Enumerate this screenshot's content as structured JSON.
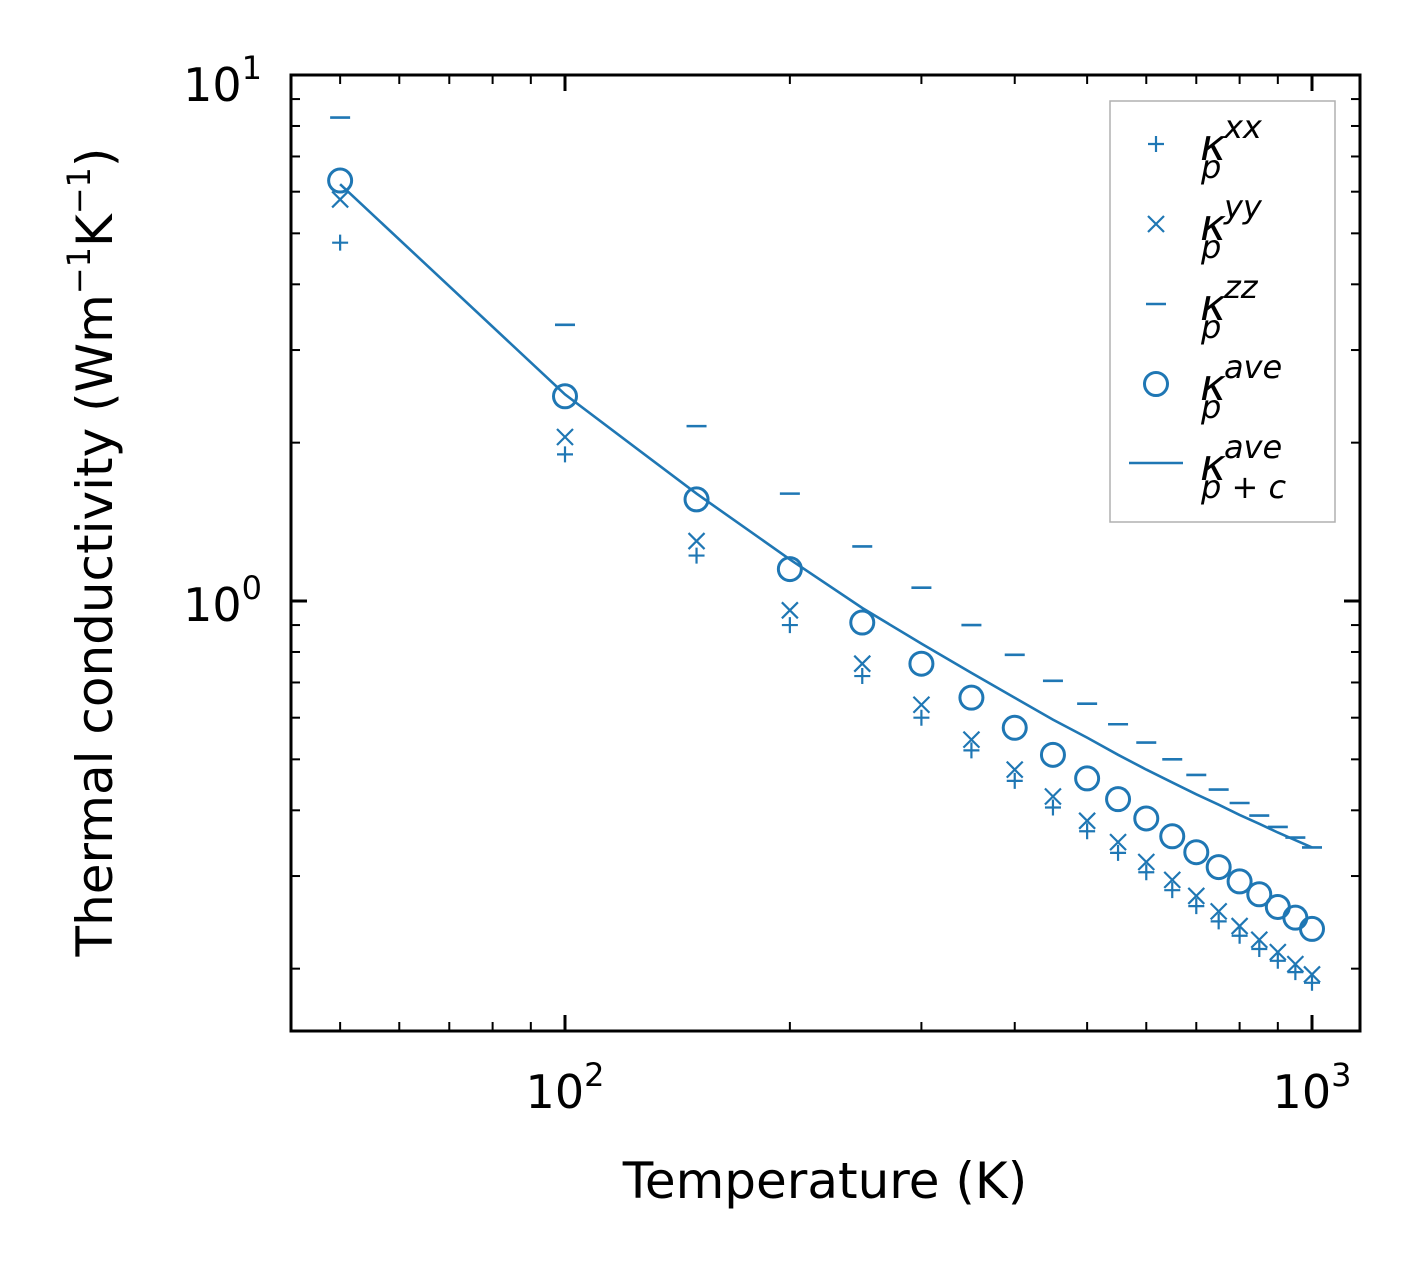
{
  "chart_data": {
    "type": "scatter",
    "xscale": "log",
    "yscale": "log",
    "xlim": [
      45,
      1050
    ],
    "ylim": [
      0.17,
      10
    ],
    "xlabel": "Temperature (K)",
    "ylabel": {
      "prefix": "Thermal conductivity (Wm",
      "exp1": "−1",
      "mid": "K",
      "exp2": "−1",
      "suffix": ")"
    },
    "x_ticks": [
      {
        "value": 100,
        "base": "10",
        "exp": "2"
      },
      {
        "value": 1000,
        "base": "10",
        "exp": "3"
      }
    ],
    "y_ticks": [
      {
        "value": 1,
        "base": "10",
        "exp": "0"
      },
      {
        "value": 10,
        "base": "10",
        "exp": "1"
      }
    ],
    "x": [
      50,
      100,
      150,
      200,
      250,
      300,
      350,
      400,
      450,
      500,
      550,
      600,
      650,
      700,
      750,
      800,
      850,
      900,
      950,
      1000
    ],
    "series": [
      {
        "name": "kappa_p_xx",
        "marker": "plus",
        "legend": {
          "base": "κ",
          "sub": "p",
          "sup": "xx"
        },
        "values": [
          4.8,
          1.9,
          1.22,
          0.9,
          0.72,
          0.6,
          0.52,
          0.455,
          0.405,
          0.365,
          0.332,
          0.305,
          0.282,
          0.263,
          0.246,
          0.231,
          0.218,
          0.207,
          0.197,
          0.188
        ]
      },
      {
        "name": "kappa_p_yy",
        "marker": "x",
        "legend": {
          "base": "κ",
          "sub": "p",
          "sup": "yy"
        },
        "values": [
          5.8,
          2.05,
          1.3,
          0.96,
          0.76,
          0.635,
          0.545,
          0.478,
          0.425,
          0.382,
          0.348,
          0.319,
          0.295,
          0.275,
          0.257,
          0.241,
          0.227,
          0.215,
          0.204,
          0.195
        ]
      },
      {
        "name": "kappa_p_zz",
        "marker": "dash",
        "legend": {
          "base": "κ",
          "sub": "p",
          "sup": "zz"
        },
        "values": [
          8.3,
          3.35,
          2.15,
          1.6,
          1.27,
          1.06,
          0.9,
          0.79,
          0.705,
          0.638,
          0.583,
          0.538,
          0.5,
          0.467,
          0.438,
          0.413,
          0.391,
          0.372,
          0.355,
          0.34
        ]
      },
      {
        "name": "kappa_p_ave",
        "marker": "circle",
        "legend": {
          "base": "κ",
          "sub": "p",
          "sup": "ave"
        },
        "values": [
          6.3,
          2.45,
          1.56,
          1.15,
          0.91,
          0.76,
          0.655,
          0.574,
          0.51,
          0.46,
          0.42,
          0.386,
          0.357,
          0.333,
          0.312,
          0.293,
          0.277,
          0.262,
          0.25,
          0.238
        ]
      },
      {
        "name": "kappa_pc_ave",
        "marker": "line",
        "legend": {
          "base": "κ",
          "sub": "p + c",
          "sup": "ave"
        },
        "values": [
          6.2,
          2.47,
          1.6,
          1.2,
          0.97,
          0.83,
          0.73,
          0.655,
          0.595,
          0.55,
          0.51,
          0.478,
          0.452,
          0.429,
          0.41,
          0.392,
          0.377,
          0.363,
          0.351,
          0.34
        ]
      }
    ],
    "legend_position": "top-right",
    "color": "#1f77b4"
  }
}
